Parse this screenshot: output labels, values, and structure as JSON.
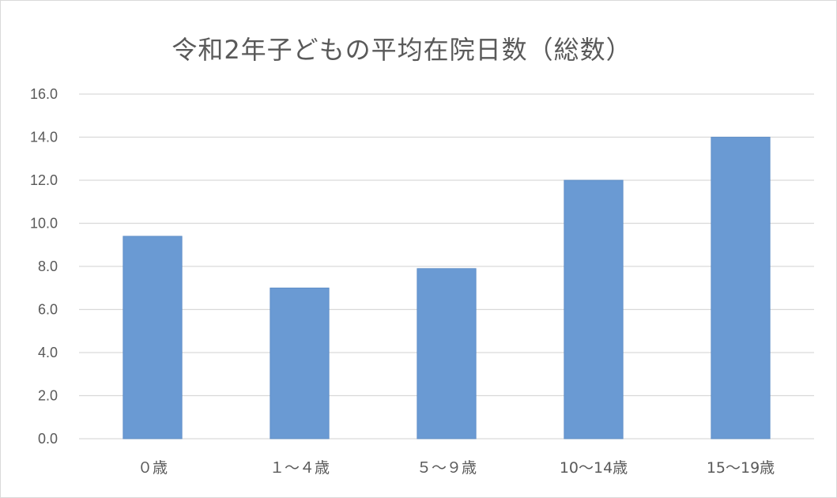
{
  "chart_data": {
    "type": "bar",
    "title": "令和2年子どもの平均在院日数（総数）",
    "categories": [
      "０歳",
      "１～４歳",
      "５～９歳",
      "10～14歳",
      "15～19歳"
    ],
    "values": [
      9.4,
      7.0,
      7.9,
      12.0,
      14.0
    ],
    "ylim": [
      0,
      16
    ],
    "yticks": [
      "0.0",
      "2.0",
      "4.0",
      "6.0",
      "8.0",
      "10.0",
      "12.0",
      "14.0",
      "16.0"
    ],
    "xlabel": "",
    "ylabel": "",
    "grid": true,
    "legend": "none",
    "colors": {
      "bar": "#6a9ad3",
      "bar_edge": "#5b8ac4",
      "grid": "#d9d9d9",
      "text": "#595959"
    }
  }
}
